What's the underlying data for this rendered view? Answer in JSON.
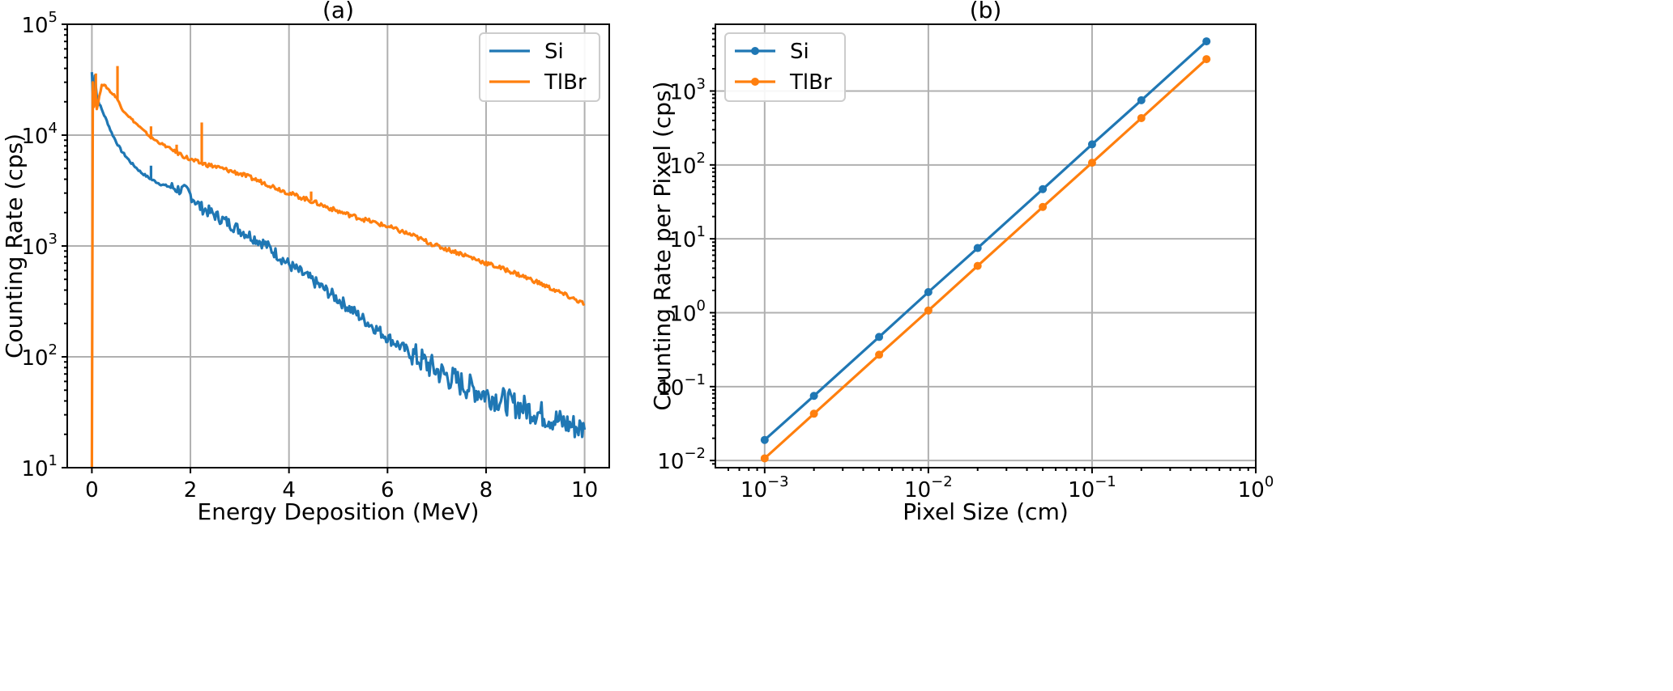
{
  "chart_data": [
    {
      "type": "line",
      "title": "(a)",
      "xlabel": "Energy Deposition (MeV)",
      "ylabel": "Counting Rate (cps)",
      "xlim": [
        -0.5,
        10.5
      ],
      "ylim": [
        10,
        100000
      ],
      "yscale": "log",
      "grid": true,
      "legend_position": "top-right",
      "x_ticks": [
        {
          "value": 0,
          "label": "0"
        },
        {
          "value": 2,
          "label": "2"
        },
        {
          "value": 4,
          "label": "4"
        },
        {
          "value": 6,
          "label": "6"
        },
        {
          "value": 8,
          "label": "8"
        },
        {
          "value": 10,
          "label": "10"
        }
      ],
      "y_ticks": [
        {
          "value": 10,
          "base": "10",
          "exp": "1"
        },
        {
          "value": 100,
          "base": "10",
          "exp": "2"
        },
        {
          "value": 1000,
          "base": "10",
          "exp": "3"
        },
        {
          "value": 10000,
          "base": "10",
          "exp": "4"
        },
        {
          "value": 100000,
          "base": "10",
          "exp": "5"
        }
      ],
      "series": [
        {
          "name": "Si",
          "color": "#1f77b4",
          "x": [
            0.0,
            0.03,
            0.06,
            0.1,
            0.2,
            0.3,
            0.4,
            0.5,
            0.6,
            0.8,
            1.0,
            1.2,
            1.4,
            1.6,
            1.8,
            1.95,
            2.0,
            2.2,
            2.5,
            3.0,
            3.5,
            4.0,
            4.5,
            5.0,
            5.5,
            6.0,
            6.5,
            7.0,
            7.5,
            8.0,
            8.5,
            9.0,
            9.5,
            10.0
          ],
          "values": [
            37000,
            19000,
            35000,
            22000,
            17000,
            13500,
            10500,
            8600,
            7200,
            5600,
            4600,
            4000,
            3600,
            3400,
            3200,
            3100,
            2900,
            2250,
            1900,
            1400,
            1050,
            680,
            480,
            330,
            220,
            150,
            105,
            75,
            57,
            46,
            38,
            32,
            26,
            22
          ],
          "spikes": [
            {
              "x": 0.0,
              "y": 37000
            },
            {
              "x": 1.2,
              "y": 5300
            }
          ]
        },
        {
          "name": "TlBr",
          "color": "#ff7f0e",
          "x": [
            0.0,
            0.02,
            0.04,
            0.07,
            0.1,
            0.15,
            0.2,
            0.3,
            0.4,
            0.5,
            0.6,
            0.8,
            1.0,
            1.2,
            1.4,
            1.7,
            2.0,
            2.2,
            2.5,
            3.0,
            3.5,
            4.0,
            4.5,
            5.0,
            5.5,
            6.0,
            6.5,
            7.0,
            7.5,
            8.0,
            8.5,
            9.0,
            9.5,
            10.0
          ],
          "values": [
            10,
            30000,
            18000,
            25000,
            17000,
            22000,
            29000,
            27000,
            24000,
            22000,
            17500,
            14000,
            11500,
            9500,
            8400,
            7100,
            6000,
            5600,
            5200,
            4500,
            3700,
            3000,
            2500,
            2050,
            1750,
            1500,
            1250,
            1000,
            850,
            700,
            590,
            480,
            380,
            300
          ],
          "spikes": [
            {
              "x": 0.08,
              "y": 36000
            },
            {
              "x": 0.52,
              "y": 42000
            },
            {
              "x": 1.2,
              "y": 12000
            },
            {
              "x": 1.72,
              "y": 8200
            },
            {
              "x": 2.23,
              "y": 13000
            },
            {
              "x": 4.45,
              "y": 3100
            }
          ]
        }
      ]
    },
    {
      "type": "line",
      "title": "(b)",
      "xlabel": "Pixel Size (cm)",
      "ylabel": "Counting Rate per Pixel (cps)",
      "xlim": [
        0.0005,
        1
      ],
      "ylim": [
        0.008,
        8000
      ],
      "xscale": "log",
      "yscale": "log",
      "grid": true,
      "legend_position": "top-left",
      "x_ticks": [
        {
          "value": 0.001,
          "base": "10",
          "exp": "−3"
        },
        {
          "value": 0.01,
          "base": "10",
          "exp": "−2"
        },
        {
          "value": 0.1,
          "base": "10",
          "exp": "−1"
        },
        {
          "value": 1,
          "base": "10",
          "exp": "0"
        }
      ],
      "y_ticks": [
        {
          "value": 0.01,
          "base": "10",
          "exp": "−2"
        },
        {
          "value": 0.1,
          "base": "10",
          "exp": "−1"
        },
        {
          "value": 1,
          "base": "10",
          "exp": "0"
        },
        {
          "value": 10,
          "base": "10",
          "exp": "1"
        },
        {
          "value": 100,
          "base": "10",
          "exp": "2"
        },
        {
          "value": 1000,
          "base": "10",
          "exp": "3"
        }
      ],
      "series": [
        {
          "name": "Si",
          "color": "#1f77b4",
          "x": [
            0.001,
            0.002,
            0.005,
            0.01,
            0.02,
            0.05,
            0.1,
            0.2,
            0.5
          ],
          "values": [
            0.019,
            0.075,
            0.47,
            1.9,
            7.5,
            47,
            190,
            750,
            4700
          ]
        },
        {
          "name": "TlBr",
          "color": "#ff7f0e",
          "x": [
            0.001,
            0.002,
            0.005,
            0.01,
            0.02,
            0.05,
            0.1,
            0.2,
            0.5
          ],
          "values": [
            0.0107,
            0.043,
            0.27,
            1.07,
            4.3,
            27,
            107,
            430,
            2700
          ]
        }
      ]
    }
  ]
}
